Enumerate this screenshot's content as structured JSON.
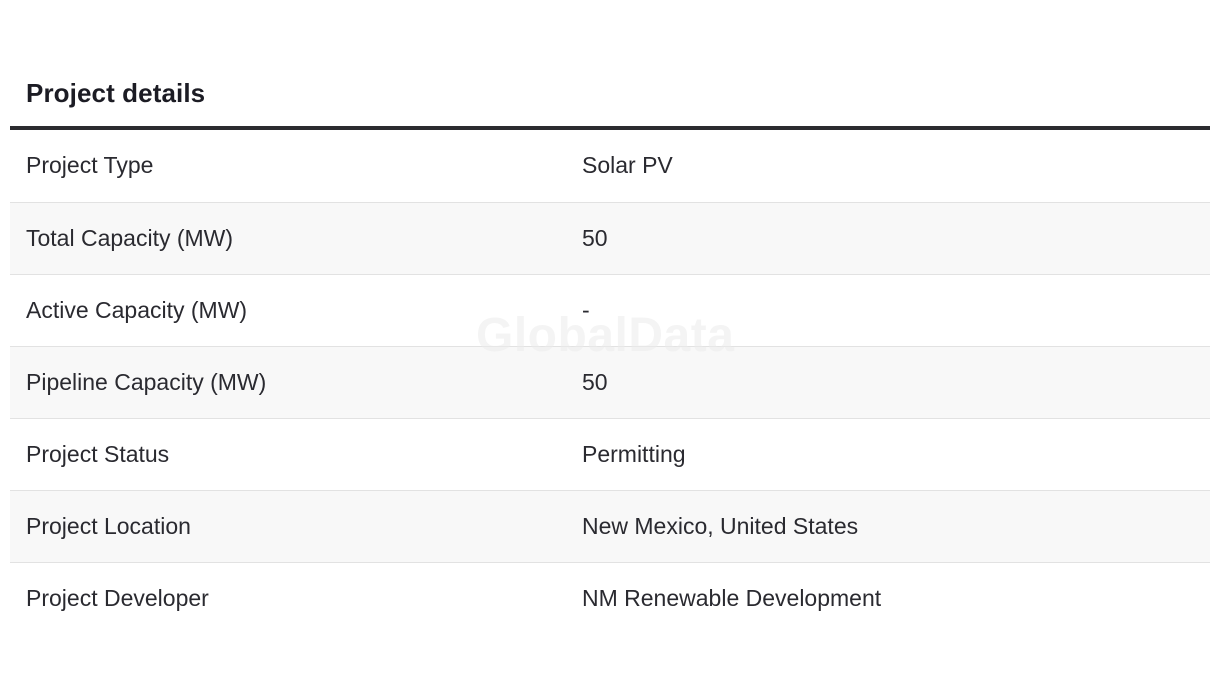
{
  "section": {
    "title": "Project details"
  },
  "rows": [
    {
      "label": "Project Type",
      "value": "Solar PV"
    },
    {
      "label": "Total Capacity (MW)",
      "value": "50"
    },
    {
      "label": "Active Capacity (MW)",
      "value": "-"
    },
    {
      "label": "Pipeline Capacity (MW)",
      "value": "50"
    },
    {
      "label": "Project Status",
      "value": "Permitting"
    },
    {
      "label": "Project Location",
      "value": "New Mexico, United States"
    },
    {
      "label": "Project Developer",
      "value": "NM Renewable Development"
    }
  ],
  "watermark": "GlobalData",
  "colors": {
    "header_rule": "#2b2b2f",
    "row_alt_bg": "#f8f8f8",
    "row_divider": "#e2e2e2",
    "text": "#2a2a30"
  }
}
